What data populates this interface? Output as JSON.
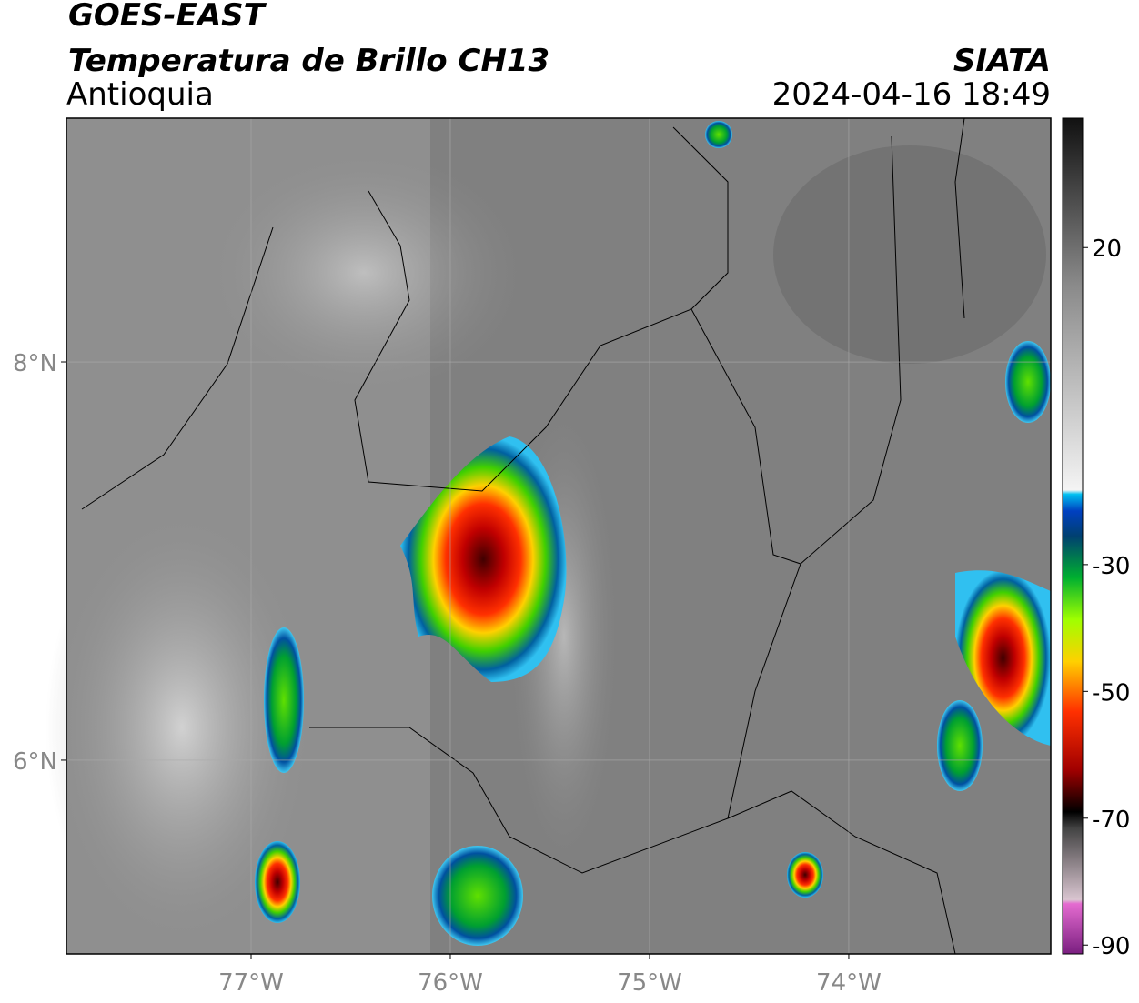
{
  "header": {
    "title": "GOES-EAST",
    "subtitle": "Temperatura de Brillo CH13",
    "region": "Antioquia",
    "source": "SIATA",
    "timestamp": "2024-04-16 18:49"
  },
  "map": {
    "xlim": [
      -77.927,
      -72.986
    ],
    "ylim": [
      5.027,
      9.224
    ],
    "xticks": [
      {
        "value": -77,
        "label": "77°W"
      },
      {
        "value": -76,
        "label": "76°W"
      },
      {
        "value": -75,
        "label": "75°W"
      },
      {
        "value": -74,
        "label": "74°W"
      }
    ],
    "yticks": [
      {
        "value": 6,
        "label": "6°N"
      },
      {
        "value": 8,
        "label": "8°N"
      }
    ],
    "grid": true
  },
  "colorbar": {
    "lim": [
      -91.4,
      40.4
    ],
    "ticks": [
      20,
      -30,
      -50,
      -70,
      -90
    ]
  }
}
